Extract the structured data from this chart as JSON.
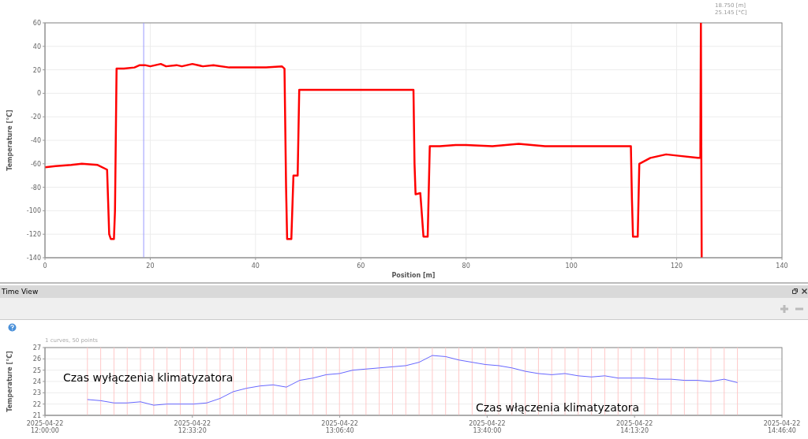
{
  "chart_data": [
    {
      "type": "line",
      "xlabel": "Position [m]",
      "ylabel": "Temperature [°C]",
      "xlim": [
        0,
        140
      ],
      "xticks": [
        0,
        20,
        40,
        60,
        80,
        100,
        120,
        140
      ],
      "ylim": [
        -140,
        60
      ],
      "yticks": [
        -140,
        -120,
        -100,
        -80,
        -60,
        -40,
        -20,
        0,
        20,
        40,
        60
      ],
      "grid": true,
      "series": [
        {
          "color": "#ff0000",
          "x": [
            0,
            2,
            5,
            7,
            10,
            11.8,
            12.2,
            12.5,
            13.1,
            13.3,
            13.6,
            15,
            17,
            18,
            19,
            20,
            22,
            23,
            25,
            26,
            28,
            30,
            32,
            35,
            38,
            42,
            45,
            45.5,
            45.8,
            46,
            46.8,
            47.2,
            48,
            48.3,
            60,
            70,
            70.2,
            70.4,
            71.3,
            71.9,
            72.7,
            73.1,
            75,
            78,
            80,
            85,
            90,
            95,
            100,
            110,
            111.3,
            111.5,
            111.7,
            112.6,
            112.9,
            115,
            118,
            120,
            124,
            124.5,
            124.6,
            124.75
          ],
          "values": [
            -63,
            -62,
            -61,
            -60,
            -61,
            -65,
            -120,
            -124,
            -124,
            -100,
            21,
            21,
            22,
            24,
            24,
            23,
            25,
            23,
            24,
            23,
            25,
            23,
            24,
            22,
            22,
            22,
            23,
            21,
            -80,
            -124,
            -124,
            -70,
            -70,
            3,
            3,
            3,
            -60,
            -86,
            -85,
            -122,
            -122,
            -45,
            -45,
            -44,
            -44,
            -45,
            -43,
            -45,
            -45,
            -45,
            -45,
            -90,
            -122,
            -122,
            -60,
            -55,
            -52,
            -53,
            -55,
            -55,
            60,
            -140
          ]
        }
      ],
      "ref_lines": [
        {
          "axis": "x",
          "value": 18.75,
          "color": "#9999ff"
        }
      ],
      "annotations": [
        "18.750 [m]",
        "25.145 [°C]"
      ]
    },
    {
      "type": "line",
      "title": "Time View",
      "subtitle": "1 curves, 50 points",
      "ylabel": "Temperature [°C]",
      "xlim": [
        "2025-04-22T12:00:00",
        "2025-04-22T14:46:40"
      ],
      "xticks": [
        {
          "value": "2025-04-22T12:00:00",
          "label": "2025-04-22\n12:00:00"
        },
        {
          "value": "2025-04-22T12:33:20",
          "label": "2025-04-22\n12:33:20"
        },
        {
          "value": "2025-04-22T13:06:40",
          "label": "2025-04-22\n13:06:40"
        },
        {
          "value": "2025-04-22T13:40:00",
          "label": "2025-04-22\n13:40:00"
        },
        {
          "value": "2025-04-22T14:13:20",
          "label": "2025-04-22\n14:13:20"
        },
        {
          "value": "2025-04-22T14:46:40",
          "label": "2025-04-22\n14:46:40"
        }
      ],
      "ylim": [
        21,
        27
      ],
      "yticks": [
        21,
        22,
        23,
        24,
        25,
        26,
        27
      ],
      "grid": "y",
      "series": [
        {
          "color": "#6666ff",
          "x": [
            "2025-04-22T12:09:36",
            "2025-04-22T12:12:36",
            "2025-04-22T12:15:36",
            "2025-04-22T12:18:36",
            "2025-04-22T12:21:36",
            "2025-04-22T12:24:36",
            "2025-04-22T12:27:36",
            "2025-04-22T12:30:36",
            "2025-04-22T12:33:36",
            "2025-04-22T12:36:36",
            "2025-04-22T12:39:36",
            "2025-04-22T12:42:36",
            "2025-04-22T12:45:36",
            "2025-04-22T12:48:36",
            "2025-04-22T12:51:36",
            "2025-04-22T12:54:36",
            "2025-04-22T12:57:36",
            "2025-04-22T13:00:36",
            "2025-04-22T13:03:36",
            "2025-04-22T13:06:36",
            "2025-04-22T13:09:36",
            "2025-04-22T13:12:36",
            "2025-04-22T13:15:36",
            "2025-04-22T13:18:36",
            "2025-04-22T13:21:36",
            "2025-04-22T13:24:36",
            "2025-04-22T13:27:36",
            "2025-04-22T13:30:36",
            "2025-04-22T13:33:36",
            "2025-04-22T13:36:36",
            "2025-04-22T13:39:36",
            "2025-04-22T13:42:36",
            "2025-04-22T13:45:36",
            "2025-04-22T13:48:36",
            "2025-04-22T13:51:36",
            "2025-04-22T13:54:36",
            "2025-04-22T13:57:36",
            "2025-04-22T14:00:36",
            "2025-04-22T14:03:36",
            "2025-04-22T14:06:36",
            "2025-04-22T14:09:36",
            "2025-04-22T14:12:36",
            "2025-04-22T14:15:36",
            "2025-04-22T14:18:36",
            "2025-04-22T14:21:36",
            "2025-04-22T14:24:36",
            "2025-04-22T14:27:36",
            "2025-04-22T14:30:36",
            "2025-04-22T14:33:36",
            "2025-04-22T14:36:36"
          ],
          "values": [
            22.4,
            22.3,
            22.1,
            22.1,
            22.2,
            21.9,
            22.0,
            22.0,
            22.0,
            22.1,
            22.5,
            23.1,
            23.4,
            23.6,
            23.7,
            23.5,
            24.1,
            24.3,
            24.6,
            24.7,
            25.0,
            25.1,
            25.2,
            25.3,
            25.4,
            25.7,
            26.3,
            26.2,
            25.9,
            25.7,
            25.5,
            25.4,
            25.2,
            24.9,
            24.7,
            24.6,
            24.7,
            24.5,
            24.4,
            24.5,
            24.3,
            24.3,
            24.3,
            24.2,
            24.2,
            24.1,
            24.1,
            24.0,
            24.2,
            23.9
          ]
        }
      ],
      "ref_lines": [
        {
          "axis": "x",
          "value": "2025-04-22T12:09:36",
          "color": "#ffc8c8"
        },
        {
          "axis": "x",
          "value": "2025-04-22T12:12:36",
          "color": "#ffc8c8"
        },
        {
          "axis": "x",
          "value": "2025-04-22T12:15:36",
          "color": "#ffc8c8"
        },
        {
          "axis": "x",
          "value": "2025-04-22T12:18:36",
          "color": "#ffc8c8"
        },
        {
          "axis": "x",
          "value": "2025-04-22T12:21:36",
          "color": "#ffc8c8"
        },
        {
          "axis": "x",
          "value": "2025-04-22T12:24:36",
          "color": "#ffc8c8"
        },
        {
          "axis": "x",
          "value": "2025-04-22T12:27:36",
          "color": "#ffc8c8"
        },
        {
          "axis": "x",
          "value": "2025-04-22T12:30:36",
          "color": "#ffc8c8"
        },
        {
          "axis": "x",
          "value": "2025-04-22T12:33:36",
          "color": "#ffc8c8"
        },
        {
          "axis": "x",
          "value": "2025-04-22T12:36:36",
          "color": "#ffc8c8"
        },
        {
          "axis": "x",
          "value": "2025-04-22T12:39:36",
          "color": "#ffc8c8"
        },
        {
          "axis": "x",
          "value": "2025-04-22T12:42:36",
          "color": "#ffc8c8"
        },
        {
          "axis": "x",
          "value": "2025-04-22T12:45:36",
          "color": "#ffc8c8"
        },
        {
          "axis": "x",
          "value": "2025-04-22T12:48:36",
          "color": "#ffc8c8"
        },
        {
          "axis": "x",
          "value": "2025-04-22T12:51:36",
          "color": "#ffc8c8"
        },
        {
          "axis": "x",
          "value": "2025-04-22T12:54:36",
          "color": "#ffc8c8"
        },
        {
          "axis": "x",
          "value": "2025-04-22T12:57:36",
          "color": "#ffc8c8"
        },
        {
          "axis": "x",
          "value": "2025-04-22T13:00:36",
          "color": "#ffc8c8"
        },
        {
          "axis": "x",
          "value": "2025-04-22T13:03:36",
          "color": "#ffc8c8"
        },
        {
          "axis": "x",
          "value": "2025-04-22T13:06:36",
          "color": "#ffc8c8"
        },
        {
          "axis": "x",
          "value": "2025-04-22T13:09:36",
          "color": "#ffc8c8"
        },
        {
          "axis": "x",
          "value": "2025-04-22T13:12:36",
          "color": "#ffc8c8"
        },
        {
          "axis": "x",
          "value": "2025-04-22T13:15:36",
          "color": "#ffc8c8"
        },
        {
          "axis": "x",
          "value": "2025-04-22T13:18:36",
          "color": "#ffc8c8"
        },
        {
          "axis": "x",
          "value": "2025-04-22T13:21:36",
          "color": "#ffc8c8"
        },
        {
          "axis": "x",
          "value": "2025-04-22T13:24:36",
          "color": "#ffc8c8"
        },
        {
          "axis": "x",
          "value": "2025-04-22T13:27:36",
          "color": "#ffc8c8"
        },
        {
          "axis": "x",
          "value": "2025-04-22T13:30:36",
          "color": "#ffc8c8"
        },
        {
          "axis": "x",
          "value": "2025-04-22T13:33:36",
          "color": "#ffc8c8"
        },
        {
          "axis": "x",
          "value": "2025-04-22T13:36:36",
          "color": "#ffc8c8"
        },
        {
          "axis": "x",
          "value": "2025-04-22T13:39:36",
          "color": "#ffc8c8"
        },
        {
          "axis": "x",
          "value": "2025-04-22T13:42:36",
          "color": "#ffc8c8"
        },
        {
          "axis": "x",
          "value": "2025-04-22T13:45:36",
          "color": "#ffc8c8"
        },
        {
          "axis": "x",
          "value": "2025-04-22T13:48:36",
          "color": "#ffc8c8"
        },
        {
          "axis": "x",
          "value": "2025-04-22T13:51:36",
          "color": "#ffc8c8"
        },
        {
          "axis": "x",
          "value": "2025-04-22T13:54:36",
          "color": "#ffc8c8"
        },
        {
          "axis": "x",
          "value": "2025-04-22T13:57:36",
          "color": "#ffc8c8"
        },
        {
          "axis": "x",
          "value": "2025-04-22T14:00:36",
          "color": "#ffc8c8"
        },
        {
          "axis": "x",
          "value": "2025-04-22T14:03:36",
          "color": "#ffc8c8"
        },
        {
          "axis": "x",
          "value": "2025-04-22T14:06:36",
          "color": "#ffc8c8"
        },
        {
          "axis": "x",
          "value": "2025-04-22T14:09:36",
          "color": "#ffc8c8"
        },
        {
          "axis": "x",
          "value": "2025-04-22T14:12:36",
          "color": "#ffc8c8"
        },
        {
          "axis": "x",
          "value": "2025-04-22T14:15:36",
          "color": "#ffc8c8"
        },
        {
          "axis": "x",
          "value": "2025-04-22T14:18:36",
          "color": "#ffc8c8"
        },
        {
          "axis": "x",
          "value": "2025-04-22T14:21:36",
          "color": "#ffc8c8"
        },
        {
          "axis": "x",
          "value": "2025-04-22T14:24:36",
          "color": "#ffc8c8"
        },
        {
          "axis": "x",
          "value": "2025-04-22T14:27:36",
          "color": "#ffc8c8"
        },
        {
          "axis": "x",
          "value": "2025-04-22T14:30:36",
          "color": "#ffc8c8"
        },
        {
          "axis": "x",
          "value": "2025-04-22T14:33:36",
          "color": "#ffc8c8"
        },
        {
          "axis": "x",
          "value": "2025-04-22T14:36:36",
          "color": "#ffc8c8"
        }
      ],
      "annotations": [
        "Czas wyłączenia klimatyzatora",
        "Czas włączenia klimatyzatora"
      ]
    }
  ]
}
